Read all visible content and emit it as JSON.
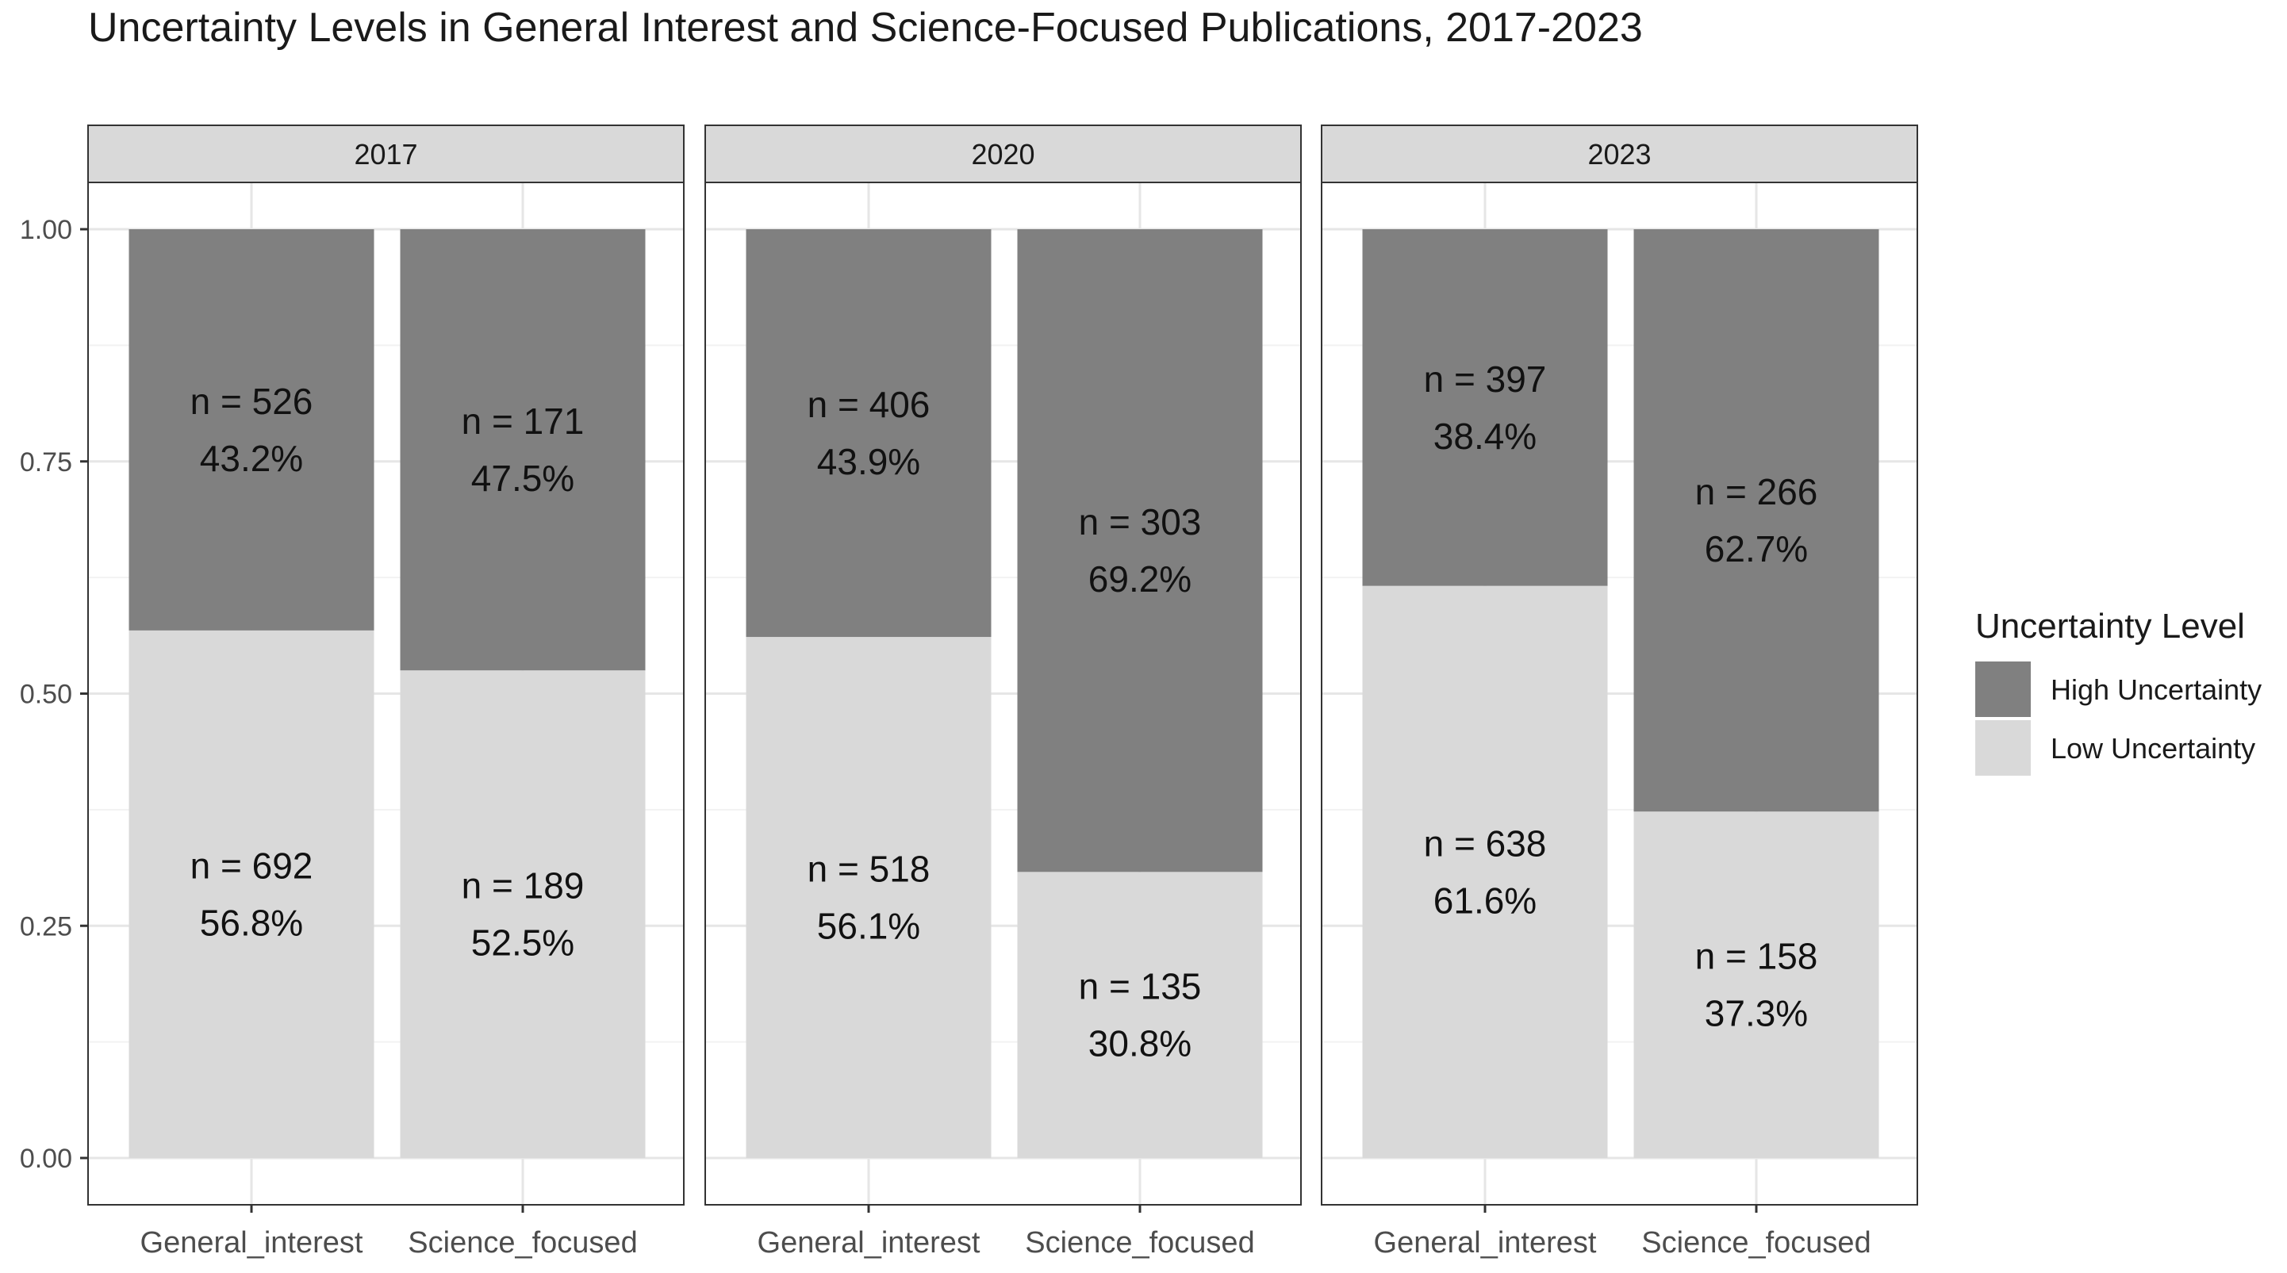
{
  "chart_data": {
    "type": "bar",
    "stacked": true,
    "title": "Uncertainty Levels in General Interest and Science-Focused Publications, 2017-2023",
    "xlabel": "",
    "ylabel": "",
    "ylim": [
      0,
      1
    ],
    "yticks": [
      "0.00",
      "0.25",
      "0.50",
      "0.75",
      "1.00"
    ],
    "grid": true,
    "facets": [
      "2017",
      "2020",
      "2023"
    ],
    "categories": [
      "General_interest",
      "Science_focused"
    ],
    "legend": {
      "title": "Uncertainty Level",
      "position": "right",
      "items": [
        {
          "label": "High Uncertainty",
          "color": "#808080"
        },
        {
          "label": "Low Uncertainty",
          "color": "#d9d9d9"
        }
      ]
    },
    "series": [
      {
        "name": "High Uncertainty",
        "color": "#808080",
        "values": {
          "2017": [
            {
              "n": "n = 526",
              "pct": "43.2%",
              "value": 0.432
            },
            {
              "n": "n = 171",
              "pct": "47.5%",
              "value": 0.475
            }
          ],
          "2020": [
            {
              "n": "n = 406",
              "pct": "43.9%",
              "value": 0.439
            },
            {
              "n": "n = 303",
              "pct": "69.2%",
              "value": 0.692
            }
          ],
          "2023": [
            {
              "n": "n = 397",
              "pct": "38.4%",
              "value": 0.384
            },
            {
              "n": "n = 266",
              "pct": "62.7%",
              "value": 0.627
            }
          ]
        }
      },
      {
        "name": "Low Uncertainty",
        "color": "#d9d9d9",
        "values": {
          "2017": [
            {
              "n": "n = 692",
              "pct": "56.8%",
              "value": 0.568
            },
            {
              "n": "n = 189",
              "pct": "52.5%",
              "value": 0.525
            }
          ],
          "2020": [
            {
              "n": "n = 518",
              "pct": "56.1%",
              "value": 0.561
            },
            {
              "n": "n = 135",
              "pct": "30.8%",
              "value": 0.308
            }
          ],
          "2023": [
            {
              "n": "n = 638",
              "pct": "61.6%",
              "value": 0.616
            },
            {
              "n": "n = 158",
              "pct": "37.3%",
              "value": 0.373
            }
          ]
        }
      }
    ]
  }
}
